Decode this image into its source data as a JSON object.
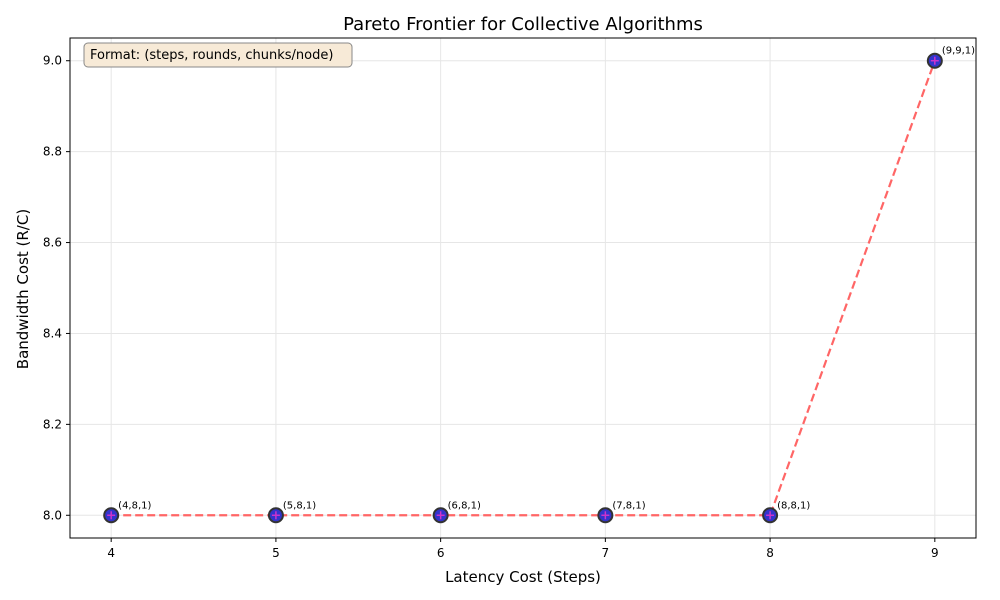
{
  "chart_data": {
    "type": "scatter",
    "title": "Pareto Frontier for Collective Algorithms",
    "xlabel": "Latency Cost (Steps)",
    "ylabel": "Bandwidth Cost (R/C)",
    "xlim": [
      3.75,
      9.25
    ],
    "ylim": [
      7.95,
      9.05
    ],
    "xticks": [
      4,
      5,
      6,
      7,
      8,
      9
    ],
    "yticks": [
      8.0,
      8.2,
      8.4,
      8.6,
      8.8,
      9.0
    ],
    "xtick_labels": [
      "4",
      "5",
      "6",
      "7",
      "8",
      "9"
    ],
    "ytick_labels": [
      "8.0",
      "8.2",
      "8.4",
      "8.6",
      "8.8",
      "9.0"
    ],
    "grid": true,
    "annotation": "Format: (steps, rounds, chunks/node)",
    "points": [
      {
        "x": 4,
        "y": 8.0,
        "label": "(4,8,1)"
      },
      {
        "x": 5,
        "y": 8.0,
        "label": "(5,8,1)"
      },
      {
        "x": 6,
        "y": 8.0,
        "label": "(6,8,1)"
      },
      {
        "x": 7,
        "y": 8.0,
        "label": "(7,8,1)"
      },
      {
        "x": 8,
        "y": 8.0,
        "label": "(8,8,1)"
      },
      {
        "x": 9,
        "y": 9.0,
        "label": "(9,9,1)"
      }
    ],
    "colors": {
      "point_fill": "#3333cc",
      "point_edge": "#333333",
      "frontier_line": "#ff6666",
      "marker_cross": "#cc33cc",
      "annotation_box_fill": "#f7ead7",
      "annotation_box_edge": "#888888",
      "grid": "#e6e6e6"
    }
  }
}
